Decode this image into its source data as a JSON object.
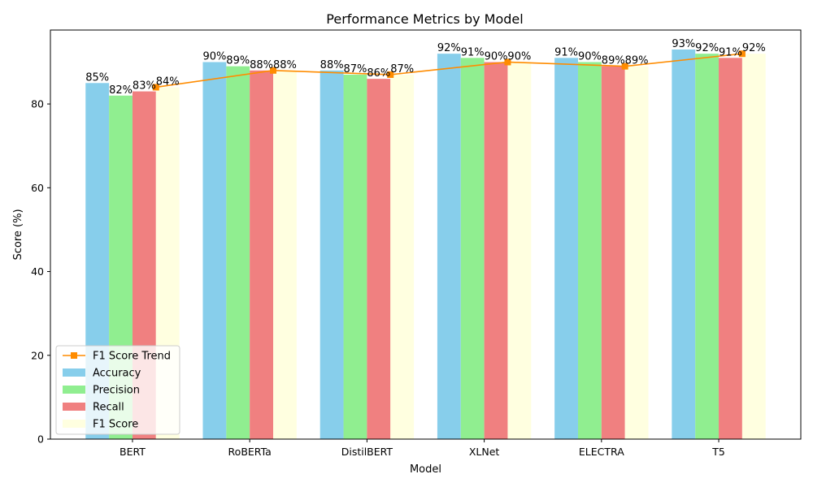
{
  "chart_data": {
    "type": "bar",
    "title": "Performance Metrics by Model",
    "xlabel": "Model",
    "ylabel": "Score (%)",
    "categories": [
      "BERT",
      "RoBERTa",
      "DistilBERT",
      "XLNet",
      "ELECTRA",
      "T5"
    ],
    "series": [
      {
        "name": "Accuracy",
        "color": "#87ceeb",
        "values": [
          85,
          90,
          88,
          92,
          91,
          93
        ]
      },
      {
        "name": "Precision",
        "color": "#90ee90",
        "values": [
          82,
          89,
          87,
          91,
          90,
          92
        ]
      },
      {
        "name": "Recall",
        "color": "#f08080",
        "values": [
          83,
          88,
          86,
          90,
          89,
          91
        ]
      },
      {
        "name": "F1 Score",
        "color": "#ffffe0",
        "values": [
          84,
          88,
          87,
          90,
          89,
          92
        ]
      }
    ],
    "line_series": {
      "name": "F1 Score Trend",
      "color": "#ff8c00",
      "marker": "square",
      "values": [
        84,
        88,
        87,
        90,
        89,
        92
      ]
    },
    "data_labels": [
      [
        "85%",
        "82%",
        "83%",
        "84%"
      ],
      [
        "90%",
        "89%",
        "88%",
        "88%"
      ],
      [
        "88%",
        "87%",
        "86%",
        "87%"
      ],
      [
        "92%",
        "91%",
        "90%",
        "90%"
      ],
      [
        "91%",
        "90%",
        "89%",
        "89%"
      ],
      [
        "93%",
        "92%",
        "91%",
        "92%"
      ]
    ],
    "y_ticks": [
      0,
      20,
      40,
      60,
      80
    ],
    "ylim": [
      0,
      97.65
    ],
    "grid": false,
    "legend_position": "lower-left"
  }
}
